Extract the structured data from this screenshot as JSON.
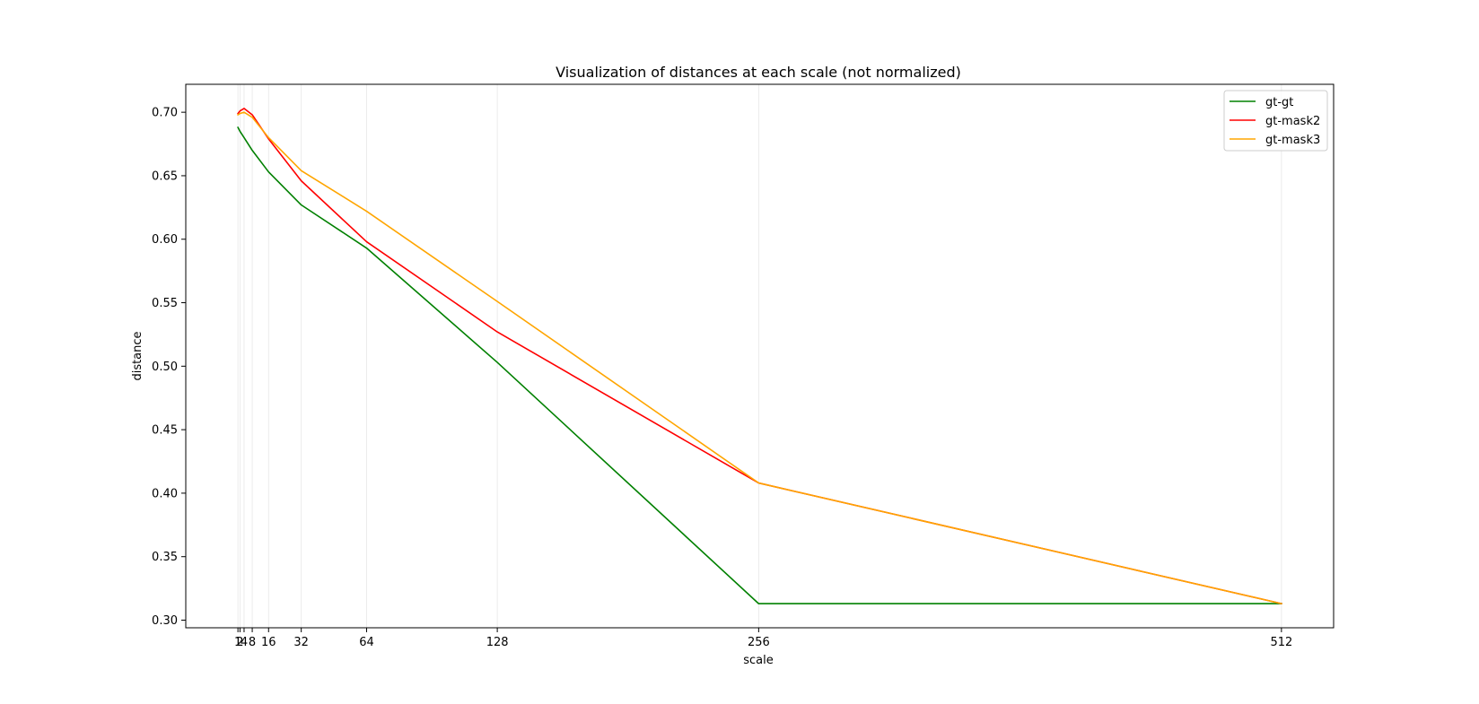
{
  "chart_data": {
    "type": "line",
    "title": "Visualization of distances at each scale (not normalized)",
    "xlabel": "scale",
    "ylabel": "distance",
    "x": [
      1,
      2,
      4,
      8,
      16,
      32,
      64,
      128,
      256,
      512
    ],
    "xticks": [
      1,
      2,
      4,
      8,
      16,
      32,
      64,
      128,
      256,
      512
    ],
    "xtick_labels": [
      "1",
      "2",
      "4",
      "8",
      "16",
      "32",
      "64",
      "128",
      "256",
      "512"
    ],
    "yticks": [
      0.3,
      0.35,
      0.4,
      0.45,
      0.5,
      0.55,
      0.6,
      0.65,
      0.7
    ],
    "ytick_labels": [
      "0.30",
      "0.35",
      "0.40",
      "0.45",
      "0.50",
      "0.55",
      "0.60",
      "0.65",
      "0.70"
    ],
    "xlim": [
      -24.55,
      537.55
    ],
    "ylim": [
      0.294,
      0.722
    ],
    "grid": "vertical",
    "legend_position": "top-right",
    "series": [
      {
        "name": "gt-gt",
        "color": "#008000",
        "values": [
          0.688,
          0.685,
          0.68,
          0.67,
          0.653,
          0.627,
          0.593,
          0.503,
          0.313,
          0.313
        ]
      },
      {
        "name": "gt-mask2",
        "color": "#ff0000",
        "values": [
          0.699,
          0.701,
          0.703,
          0.698,
          0.679,
          0.646,
          0.598,
          0.527,
          0.408,
          0.313
        ]
      },
      {
        "name": "gt-mask3",
        "color": "#ffa500",
        "values": [
          0.698,
          0.699,
          0.7,
          0.696,
          0.68,
          0.654,
          0.622,
          0.551,
          0.408,
          0.313
        ]
      }
    ]
  }
}
